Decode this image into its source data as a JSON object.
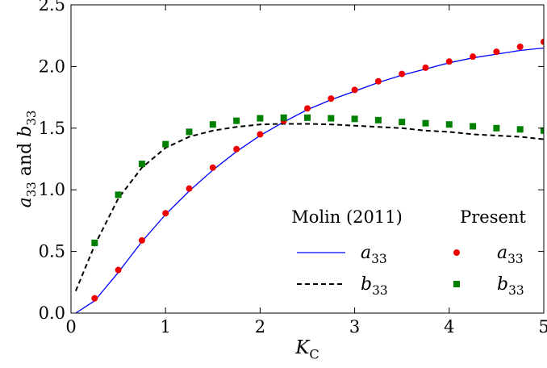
{
  "chart_data": {
    "type": "line",
    "xlabel": "K_C",
    "ylabel": "a_33 and b_33",
    "xlim": [
      0,
      5
    ],
    "ylim": [
      0,
      2.5
    ],
    "xticks": [
      0,
      1,
      2,
      3,
      4,
      5
    ],
    "yticks": [
      0.0,
      0.5,
      1.0,
      1.5,
      2.0,
      2.5
    ],
    "xtick_labels": [
      "0",
      "1",
      "2",
      "3",
      "4",
      "5"
    ],
    "ytick_labels": [
      "0.0",
      "0.5",
      "1.0",
      "1.5",
      "2.0",
      "2.5"
    ],
    "grid": false,
    "legend_placement": "bottom-right",
    "legend_headers": [
      "Molin (2011)",
      "Present"
    ],
    "series": [
      {
        "name": "a_33",
        "group": "Molin (2011)",
        "style": "line",
        "color": "#0000ff",
        "dash": "solid",
        "x": [
          0.05,
          0.25,
          0.5,
          0.75,
          1.0,
          1.25,
          1.5,
          1.75,
          2.0,
          2.25,
          2.5,
          2.75,
          3.0,
          3.25,
          3.5,
          3.75,
          4.0,
          4.25,
          4.5,
          4.75,
          5.0
        ],
        "y": [
          0.0,
          0.1,
          0.33,
          0.58,
          0.8,
          0.99,
          1.16,
          1.31,
          1.44,
          1.55,
          1.65,
          1.73,
          1.8,
          1.87,
          1.93,
          1.98,
          2.03,
          2.07,
          2.1,
          2.13,
          2.15
        ]
      },
      {
        "name": "b_33",
        "group": "Molin (2011)",
        "style": "line",
        "color": "#000000",
        "dash": "dashed",
        "x": [
          0.05,
          0.25,
          0.5,
          0.75,
          1.0,
          1.25,
          1.5,
          1.75,
          2.0,
          2.25,
          2.5,
          2.75,
          3.0,
          3.25,
          3.5,
          3.75,
          4.0,
          4.25,
          4.5,
          4.75,
          5.0
        ],
        "y": [
          0.18,
          0.55,
          0.93,
          1.18,
          1.34,
          1.43,
          1.48,
          1.51,
          1.53,
          1.535,
          1.535,
          1.53,
          1.52,
          1.51,
          1.5,
          1.48,
          1.47,
          1.45,
          1.44,
          1.43,
          1.41
        ]
      },
      {
        "name": "a_33",
        "group": "Present",
        "style": "marker",
        "marker": "circle",
        "color": "#ee0000",
        "x": [
          0.25,
          0.5,
          0.75,
          1.0,
          1.25,
          1.5,
          1.75,
          2.0,
          2.25,
          2.5,
          2.75,
          3.0,
          3.25,
          3.5,
          3.75,
          4.0,
          4.25,
          4.5,
          4.75,
          5.0
        ],
        "y": [
          0.12,
          0.35,
          0.59,
          0.81,
          1.01,
          1.18,
          1.33,
          1.45,
          1.56,
          1.66,
          1.74,
          1.81,
          1.88,
          1.94,
          1.99,
          2.04,
          2.08,
          2.12,
          2.16,
          2.2
        ]
      },
      {
        "name": "b_33",
        "group": "Present",
        "style": "marker",
        "marker": "square",
        "color": "#008000",
        "x": [
          0.25,
          0.5,
          0.75,
          1.0,
          1.25,
          1.5,
          1.75,
          2.0,
          2.25,
          2.5,
          2.75,
          3.0,
          3.25,
          3.5,
          3.75,
          4.0,
          4.25,
          4.5,
          4.75,
          5.0
        ],
        "y": [
          0.57,
          0.96,
          1.21,
          1.37,
          1.47,
          1.53,
          1.56,
          1.58,
          1.585,
          1.585,
          1.58,
          1.575,
          1.565,
          1.55,
          1.54,
          1.53,
          1.515,
          1.5,
          1.49,
          1.48
        ]
      }
    ]
  }
}
